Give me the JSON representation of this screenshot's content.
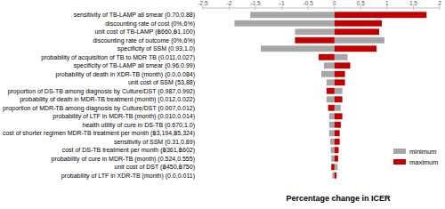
{
  "chart_data": {
    "type": "bar",
    "orientation": "horizontal",
    "x_label": "Percentage change in ICER",
    "categories": [
      "sensitivity of TB-LAMP all smear (0.70,0.88)",
      "discounting rate of cost (0%,6%)",
      "unit cost of TB-LAMP (฿660,฿1,100)",
      "discounting rate of outcome (0%,6%)",
      "specificity of SSM (0.93,1.0)",
      "probability of acquisition of TB to MDR TB (0.011,0.027)",
      "specificity of TB-LAMP all smear (0.96,0.99)",
      "probability of death in XDR-TB (month) (0.0,0.084)",
      "unit cost of SSM (53,88)",
      "proportion of DS-TB among diagnosis by Culture/DST (0.987,0.992)",
      "probability of death in MDR-TB treatment (month) (0.012,0.022)",
      "proportion of MDR-TB among diagnosis by Culture/DST (0.007,0.012)",
      "probability of LTF in MDR-TB (month) (0.010,0.014)",
      "health utility of cure in DS-TB (0.670,1.0)",
      "cost of shorter regimen MDR-TB treatment per month (฿3,194,฿5,324)",
      "sensitivity of SSM (0.31,0.89)",
      "cost of DS-TB treatment per month (฿361,฿602)",
      "probability of cure in MDR-TB (month) (0.524,0.555)",
      "unit cost of DST (฿450,฿750)",
      "probability of LTF in XDR-TB (month) (0.0,0.011)"
    ],
    "series": [
      {
        "name": "minimum",
        "color": "#a6a6a6",
        "values": [
          -1.6,
          -1.9,
          -0.75,
          0.95,
          -1.4,
          0.25,
          -0.2,
          -0.25,
          -0.15,
          0.15,
          -0.15,
          0.12,
          -0.1,
          -0.1,
          -0.1,
          -0.08,
          -0.07,
          -0.06,
          0.06,
          -0.04
        ]
      },
      {
        "name": "maximum",
        "color": "#c00000",
        "values": [
          1.75,
          0.9,
          0.85,
          -0.75,
          0.8,
          -0.3,
          0.3,
          0.2,
          0.2,
          -0.15,
          0.15,
          -0.12,
          0.15,
          0.12,
          0.1,
          0.1,
          0.08,
          0.07,
          -0.06,
          0.04
        ]
      }
    ],
    "xlim": [
      -2.5,
      2
    ],
    "xticks": [
      -2.5,
      -2,
      -1.5,
      -1,
      -0.5,
      0,
      0.5,
      1,
      1.5,
      2
    ],
    "legend": "lower right"
  }
}
